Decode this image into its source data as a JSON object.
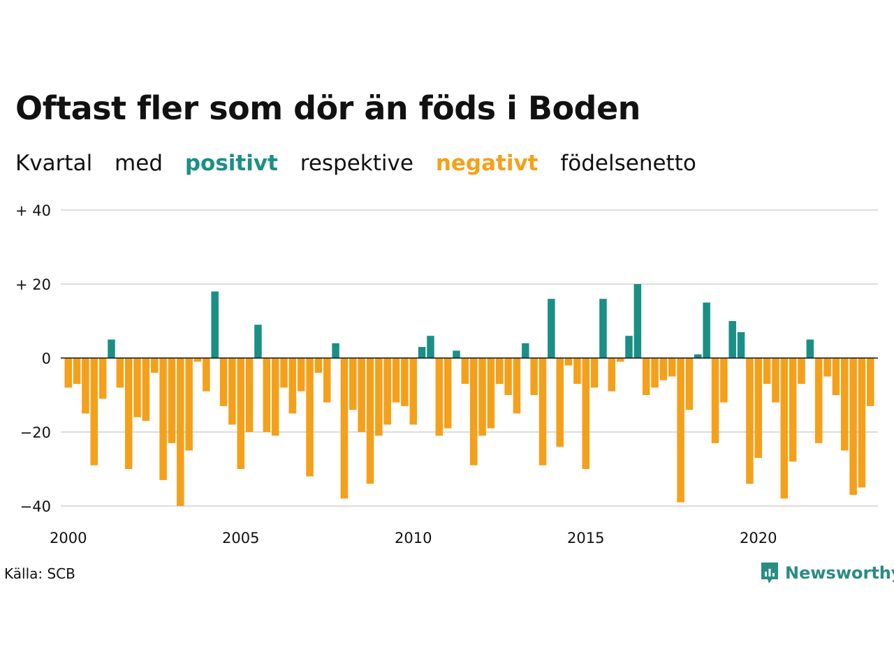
{
  "title": "Oftast fler som dör än föds i Boden",
  "subtitle": {
    "part1": "Kvartal",
    "part2": "med",
    "positive_word": "positivt",
    "part3": "respektive",
    "negative_word": "negativt",
    "part4": "födelsenetto"
  },
  "source": "Källa: SCB",
  "brand": "Newsworthy",
  "colors": {
    "positive": "#1a8f86",
    "negative": "#f5a01a",
    "grid": "#dddddd",
    "zero_line": "#111111",
    "text": "#111111",
    "brand": "#2a8c83"
  },
  "chart_data": {
    "type": "bar",
    "title": "Oftast fler som dör än föds i Boden",
    "subtitle": "Kvartal med positivt respektive negativt födelsenetto",
    "x_start_year": 2000,
    "periods_per_year": 4,
    "x_ticks": [
      2000,
      2005,
      2010,
      2015,
      2020
    ],
    "y_ticks": [
      40,
      20,
      0,
      -20,
      -40
    ],
    "y_tick_labels": [
      "+ 40",
      "+ 20",
      "0",
      "−20",
      "−40"
    ],
    "ylim": [
      -40,
      40
    ],
    "grid": true,
    "values": [
      -8,
      -7,
      -15,
      -29,
      -11,
      5,
      -8,
      -30,
      -16,
      -17,
      -4,
      -33,
      -23,
      -40,
      -25,
      -1,
      -9,
      18,
      -13,
      -18,
      -30,
      -20,
      9,
      -20,
      -21,
      -8,
      -15,
      -9,
      -32,
      -4,
      -12,
      4,
      -38,
      -14,
      -20,
      -34,
      -21,
      -18,
      -12,
      -13,
      -18,
      3,
      6,
      -21,
      -19,
      2,
      -7,
      -29,
      -21,
      -19,
      -7,
      -10,
      -15,
      4,
      -10,
      -29,
      16,
      -24,
      -2,
      -7,
      -30,
      -8,
      16,
      -9,
      -1,
      6,
      20,
      -10,
      -8,
      -6,
      -5,
      -39,
      -14,
      1,
      15,
      -23,
      -12,
      10,
      7,
      -34,
      -27,
      -7,
      -12,
      -38,
      -28,
      -7,
      5,
      -23,
      -5,
      -10,
      -25,
      -37,
      -35,
      -13
    ]
  }
}
